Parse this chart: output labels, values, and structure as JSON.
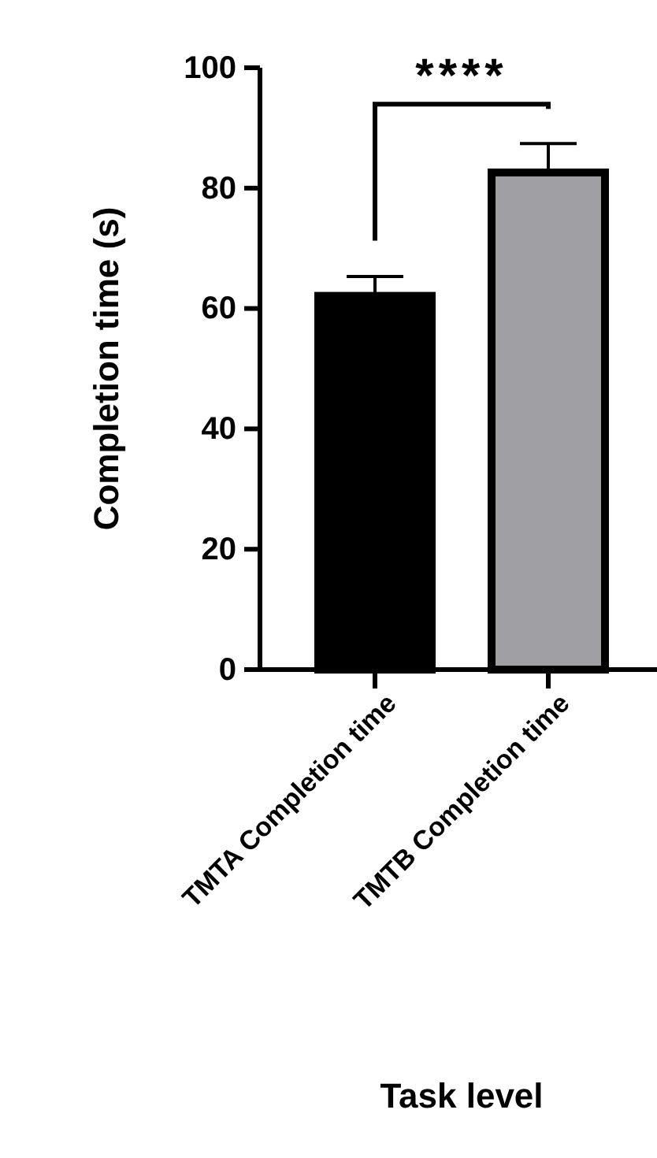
{
  "chart_data": {
    "type": "bar",
    "categories": [
      "TMTA Completion time",
      "TMTB Completion time"
    ],
    "values": [
      62.1,
      82.6
    ],
    "colors": [
      "#000000",
      "#a0a0a4"
    ],
    "errors": [
      [
        62.1,
        65.3
      ],
      [
        82.6,
        87.4
      ]
    ],
    "ylabel": "Completion time (s)",
    "xlabel": "Task level",
    "ylim": [
      0,
      100
    ],
    "yticks": [
      0,
      20,
      40,
      60,
      80,
      100
    ],
    "grid": false,
    "annotations": [
      "****"
    ]
  }
}
